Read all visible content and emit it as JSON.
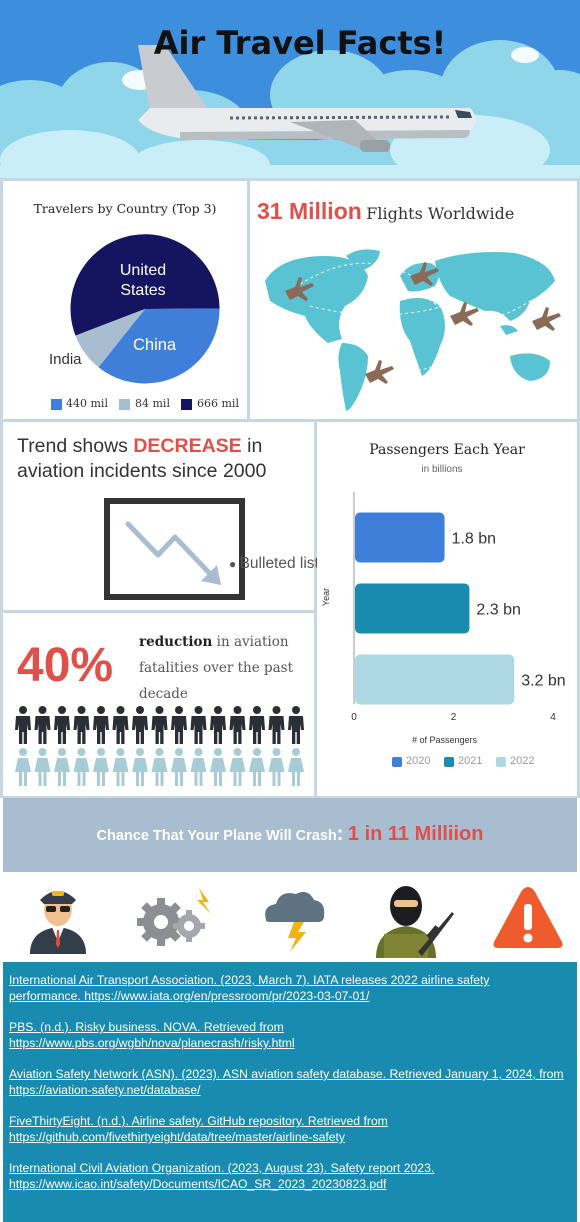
{
  "header": {
    "title": "Air Travel Facts!",
    "sky_color": "#3d8fde"
  },
  "countries": {
    "title": "Travelers by Country (Top 3)",
    "labels": {
      "us": "United\nStates",
      "china": "China",
      "india": "India"
    },
    "legend": [
      {
        "label": "440 mil",
        "color": "#3f7fd9"
      },
      {
        "label": "84 mil",
        "color": "#a8bdd0"
      },
      {
        "label": "666 mil",
        "color": "#141460"
      }
    ]
  },
  "flights": {
    "number": "31 Million",
    "text": "Flights Worldwide",
    "map_color": "#5ac3d3"
  },
  "trend": {
    "text_before": "Trend shows ",
    "highlight": "DECREASE",
    "text_after": " in aviation incidents since 2000",
    "bullet_text": "Bulleted list"
  },
  "reduction": {
    "percent": "40%",
    "bold": "reduction",
    "text": " in aviation fatalities over the past decade",
    "icons_total": 30,
    "icons_highlighted": 12
  },
  "chart_data": {
    "type": "bar",
    "title": "Passengers Each Year",
    "subtitle": "in billions",
    "ylabel": "Year",
    "xlabel": "# of Passengers",
    "xlim": [
      0,
      4
    ],
    "xticks": [
      "0",
      "2",
      "4"
    ],
    "categories": [
      "2020",
      "2021",
      "2022"
    ],
    "values": [
      1.8,
      2.3,
      3.2
    ],
    "labels": [
      "1.8 bn",
      "2.3 bn",
      "3.2 bn"
    ],
    "colors": [
      "#3f7fd9",
      "#1a8bb0",
      "#acd8e3"
    ],
    "legend_position": "bottom"
  },
  "crash": {
    "text": "Chance That Your Plane Will Crash",
    "colon": ":",
    "odds": "1 in 11 Milliion",
    "accent": "#e0504a"
  },
  "icons": [
    "pilot-icon",
    "gears-icon",
    "storm-cloud-icon",
    "terrorist-icon",
    "warning-icon"
  ],
  "references": [
    {
      "line1": "International Air Transport Association. (2023, March 7). IATA releases 2022 airline safety",
      "line2": "performance. https://www.iata.org/en/pressroom/pr/2023-03-07-01/"
    },
    {
      "line1": "PBS. (n.d.). Risky business. NOVA. Retrieved from",
      "line2": "https://www.pbs.org/wgbh/nova/planecrash/risky.html"
    },
    {
      "line1": "Aviation Safety Network (ASN). (2023). ASN aviation safety database. Retrieved January 1, 2024, from",
      "line2": "https://aviation-safety.net/database/"
    },
    {
      "line1": "FiveThirtyEight. (n.d.). Airline safety. GitHub repository. Retrieved from",
      "line2": "https://github.com/fivethirtyeight/data/tree/master/airline-safety"
    },
    {
      "line1": "International Civil Aviation Organization. (2023, August 23). Safety report 2023.",
      "line2": "https://www.icao.int/safety/Documents/ICAO_SR_2023_20230823.pdf"
    }
  ]
}
